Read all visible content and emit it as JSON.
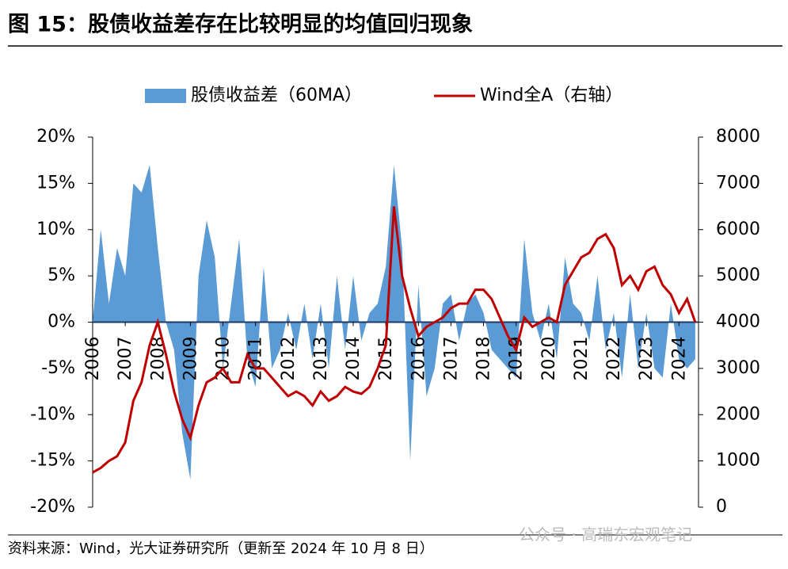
{
  "title": "图 15：股债收益差存在比较明显的均值回归现象",
  "source": "资料来源：Wind，光大证券研究所（更新至 2024 年 10 月 8 日）",
  "watermark": "公众号 · 高瑞东宏观笔记",
  "chart_data": {
    "type": "area-line",
    "x": [
      2006,
      2006.25,
      2006.5,
      2006.75,
      2007,
      2007.25,
      2007.5,
      2007.75,
      2008,
      2008.25,
      2008.5,
      2008.75,
      2009,
      2009.25,
      2009.5,
      2009.75,
      2010,
      2010.25,
      2010.5,
      2010.75,
      2011,
      2011.25,
      2011.5,
      2011.75,
      2012,
      2012.25,
      2012.5,
      2012.75,
      2013,
      2013.25,
      2013.5,
      2013.75,
      2014,
      2014.25,
      2014.5,
      2014.75,
      2015,
      2015.25,
      2015.5,
      2015.75,
      2016,
      2016.25,
      2016.5,
      2016.75,
      2017,
      2017.25,
      2017.5,
      2017.75,
      2018,
      2018.25,
      2018.5,
      2018.75,
      2019,
      2019.25,
      2019.5,
      2019.75,
      2020,
      2020.25,
      2020.5,
      2020.75,
      2021,
      2021.25,
      2021.5,
      2021.75,
      2022,
      2022.25,
      2022.5,
      2022.75,
      2023,
      2023.25,
      2023.5,
      2023.75,
      2024,
      2024.25,
      2024.5
    ],
    "series": [
      {
        "name": "股债收益差（60MA）",
        "color": "#5b9bd5",
        "values": [
          0,
          10,
          2,
          8,
          5,
          15,
          14,
          17,
          8,
          0,
          -3,
          -12,
          -17,
          5,
          11,
          7,
          -5,
          2,
          9,
          -4,
          -7,
          6,
          -5,
          -3,
          1,
          -3,
          2,
          -4,
          2,
          -5,
          5,
          -3,
          5,
          -2,
          1,
          2,
          6,
          17,
          8,
          -15,
          4,
          -8,
          -5,
          2,
          3,
          -2,
          2,
          3,
          1,
          -3,
          -4,
          -5,
          -6,
          9,
          1,
          -2,
          2,
          -4,
          7,
          2,
          1,
          -2,
          5,
          -3,
          1,
          -6,
          3,
          -5,
          1,
          -5,
          -6,
          2,
          -4,
          -5,
          -4
        ]
      },
      {
        "name": "Wind全A（右轴）",
        "color": "#c00000",
        "axis": "y2",
        "values": [
          750,
          850,
          1000,
          1100,
          1400,
          2300,
          2700,
          3500,
          4000,
          3300,
          2500,
          1900,
          1500,
          2200,
          2700,
          2800,
          3000,
          2700,
          2700,
          3300,
          3000,
          3000,
          2800,
          2600,
          2400,
          2500,
          2400,
          2200,
          2500,
          2300,
          2400,
          2600,
          2500,
          2450,
          2600,
          3000,
          3500,
          6500,
          5000,
          4300,
          3700,
          3900,
          4000,
          4100,
          4300,
          4400,
          4400,
          4700,
          4700,
          4500,
          4100,
          3700,
          3400,
          4100,
          3900,
          4000,
          4100,
          4000,
          4800,
          5100,
          5400,
          5500,
          5800,
          5900,
          5600,
          4800,
          5000,
          4700,
          5100,
          5200,
          4800,
          4600,
          4200,
          4500,
          4000
        ]
      }
    ],
    "xlim": [
      2006,
      2024.6
    ],
    "xticks": [
      2006,
      2007,
      2008,
      2009,
      2010,
      2011,
      2012,
      2013,
      2014,
      2015,
      2016,
      2017,
      2018,
      2019,
      2020,
      2021,
      2022,
      2023,
      2024
    ],
    "ylim": [
      -20,
      20
    ],
    "yticks": [
      {
        "value": -20,
        "label": "-20%"
      },
      {
        "value": -15,
        "label": "-15%"
      },
      {
        "value": -10,
        "label": "-10%"
      },
      {
        "value": -5,
        "label": "-5%"
      },
      {
        "value": 0,
        "label": "0%"
      },
      {
        "value": 5,
        "label": "5%"
      },
      {
        "value": 10,
        "label": "10%"
      },
      {
        "value": 15,
        "label": "15%"
      },
      {
        "value": 20,
        "label": "20%"
      }
    ],
    "y2lim": [
      0,
      8000
    ],
    "y2ticks": [
      0,
      1000,
      2000,
      3000,
      4000,
      5000,
      6000,
      7000,
      8000
    ]
  }
}
